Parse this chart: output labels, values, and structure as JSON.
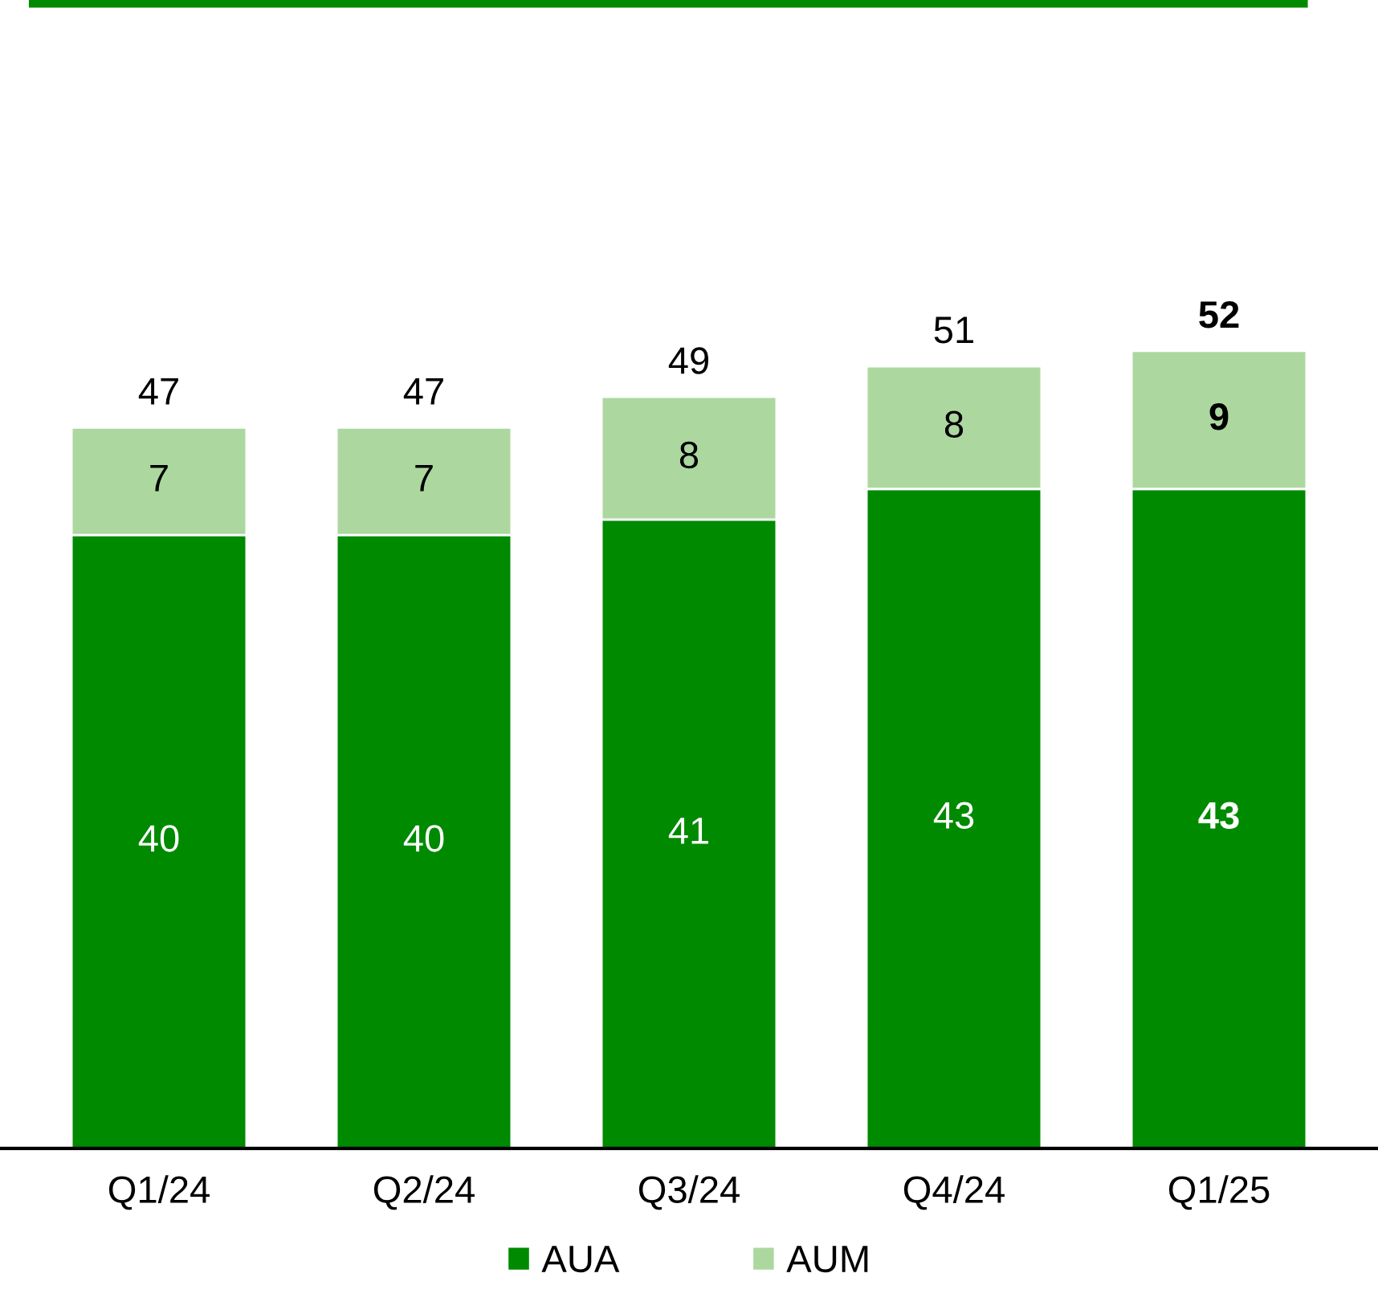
{
  "chart_data": {
    "type": "bar",
    "stacked": true,
    "categories": [
      "Q1/24",
      "Q2/24",
      "Q3/24",
      "Q4/24",
      "Q1/25"
    ],
    "series": [
      {
        "name": "AUA",
        "color": "#008a00",
        "values": [
          40,
          40,
          41,
          43,
          43
        ]
      },
      {
        "name": "AUM",
        "color": "#acd8a0",
        "values": [
          7,
          7,
          8,
          8,
          9
        ]
      }
    ],
    "data_labels": true,
    "totals": [
      "47",
      "47",
      "49",
      "51",
      "52"
    ],
    "legend": "bottom",
    "grid": false
  }
}
